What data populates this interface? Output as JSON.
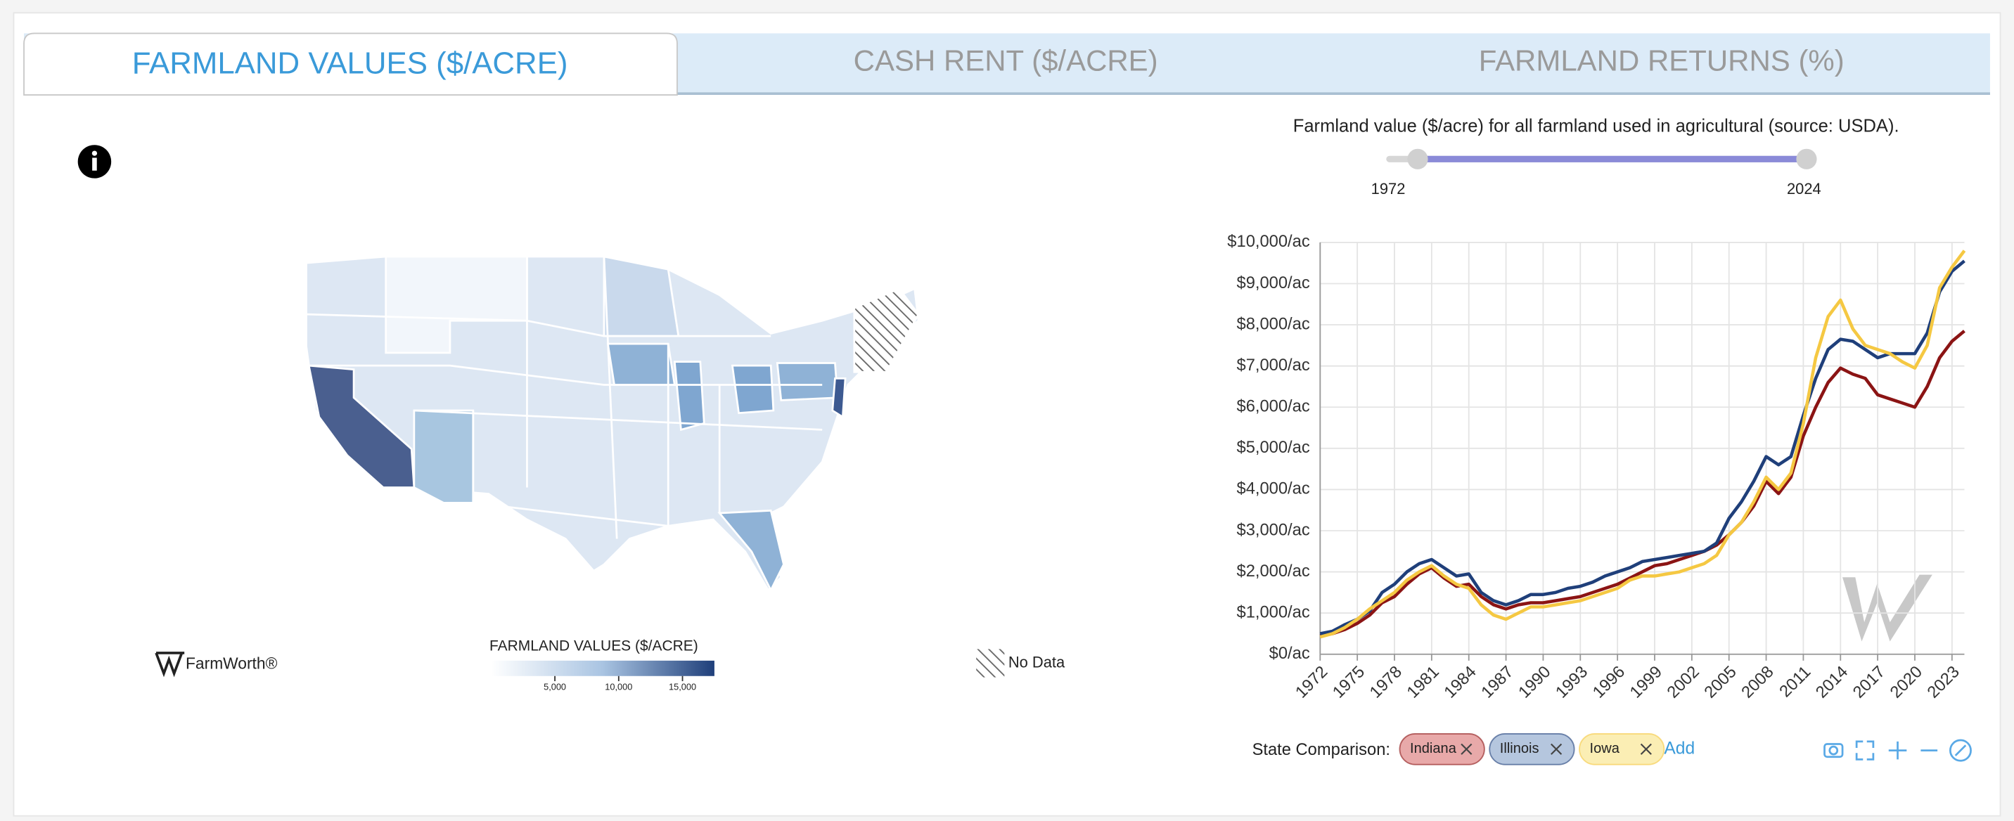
{
  "tabs": [
    "FARMLAND VALUES ($/ACRE)",
    "CASH RENT ($/ACRE)",
    "FARMLAND RETURNS (%)"
  ],
  "subtitle": "Farmland value ($/acre) for all farmland used in agricultural (source: USDA).",
  "slider": {
    "values": [
      1972,
      2024
    ]
  },
  "map": {
    "legend_title": "FARMLAND VALUES ($/ACRE)",
    "colorbar_lim": [
      0,
      17500
    ],
    "colorbar_ticks": [
      {
        "value": 5000,
        "label": "5,000"
      },
      {
        "value": 10000,
        "label": "10,000"
      },
      {
        "value": 15000,
        "label": "15,000"
      }
    ],
    "no_data": "No Data"
  },
  "brand": "FarmWorth®",
  "comparison": {
    "label": "State Comparison:",
    "add": "Add"
  },
  "chart_data": {
    "type": "line",
    "x": [
      1972,
      1973,
      1974,
      1975,
      1976,
      1977,
      1978,
      1979,
      1980,
      1981,
      1982,
      1983,
      1984,
      1985,
      1986,
      1987,
      1988,
      1989,
      1990,
      1991,
      1992,
      1993,
      1994,
      1995,
      1996,
      1997,
      1998,
      1999,
      2000,
      2001,
      2002,
      2003,
      2004,
      2005,
      2006,
      2007,
      2008,
      2009,
      2010,
      2011,
      2012,
      2013,
      2014,
      2015,
      2016,
      2017,
      2018,
      2019,
      2020,
      2021,
      2022,
      2023,
      2024
    ],
    "xlim": [
      1972,
      2024
    ],
    "xticks": [
      1972,
      1975,
      1978,
      1981,
      1984,
      1987,
      1990,
      1993,
      1996,
      1999,
      2002,
      2005,
      2008,
      2011,
      2014,
      2017,
      2020,
      2023
    ],
    "ylim": [
      0,
      10000
    ],
    "yticks": [
      {
        "value": 0,
        "label": "$0/ac"
      },
      {
        "value": 1000,
        "label": "$1,000/ac"
      },
      {
        "value": 2000,
        "label": "$2,000/ac"
      },
      {
        "value": 3000,
        "label": "$3,000/ac"
      },
      {
        "value": 4000,
        "label": "$4,000/ac"
      },
      {
        "value": 5000,
        "label": "$5,000/ac"
      },
      {
        "value": 6000,
        "label": "$6,000/ac"
      },
      {
        "value": 7000,
        "label": "$7,000/ac"
      },
      {
        "value": 8000,
        "label": "$8,000/ac"
      },
      {
        "value": 9000,
        "label": "$9,000/ac"
      },
      {
        "value": 10000,
        "label": "$10,000/ac"
      }
    ],
    "grid": true,
    "series": [
      {
        "name": "Indiana",
        "color": "#8b1414",
        "values": [
          450,
          500,
          600,
          750,
          950,
          1250,
          1400,
          1700,
          1950,
          2100,
          1850,
          1650,
          1700,
          1400,
          1200,
          1100,
          1200,
          1250,
          1250,
          1300,
          1350,
          1400,
          1500,
          1600,
          1700,
          1850,
          2000,
          2150,
          2200,
          2300,
          2400,
          2500,
          2650,
          2900,
          3200,
          3600,
          4200,
          3900,
          4300,
          5300,
          6000,
          6600,
          6950,
          6800,
          6700,
          6300,
          6200,
          6100,
          6000,
          6500,
          7200,
          7600,
          7850
        ]
      },
      {
        "name": "Illinois",
        "color": "#1f3f7a",
        "values": [
          500,
          560,
          720,
          850,
          1050,
          1500,
          1700,
          2000,
          2200,
          2300,
          2100,
          1900,
          1950,
          1500,
          1300,
          1200,
          1300,
          1450,
          1450,
          1500,
          1600,
          1650,
          1750,
          1900,
          2000,
          2100,
          2250,
          2300,
          2350,
          2400,
          2450,
          2500,
          2700,
          3300,
          3700,
          4200,
          4800,
          4600,
          4800,
          5800,
          6700,
          7400,
          7650,
          7600,
          7400,
          7200,
          7300,
          7300,
          7300,
          7800,
          8800,
          9300,
          9550
        ]
      },
      {
        "name": "Iowa",
        "color": "#f5c842",
        "values": [
          420,
          500,
          650,
          850,
          1100,
          1300,
          1500,
          1800,
          2000,
          2150,
          1900,
          1700,
          1600,
          1200,
          950,
          850,
          1000,
          1150,
          1150,
          1200,
          1250,
          1300,
          1400,
          1500,
          1600,
          1800,
          1900,
          1900,
          1950,
          2000,
          2100,
          2200,
          2400,
          2900,
          3200,
          3700,
          4300,
          4000,
          4400,
          5600,
          7200,
          8200,
          8600,
          7900,
          7500,
          7400,
          7300,
          7100,
          6950,
          7500,
          8900,
          9400,
          9800
        ]
      }
    ]
  }
}
